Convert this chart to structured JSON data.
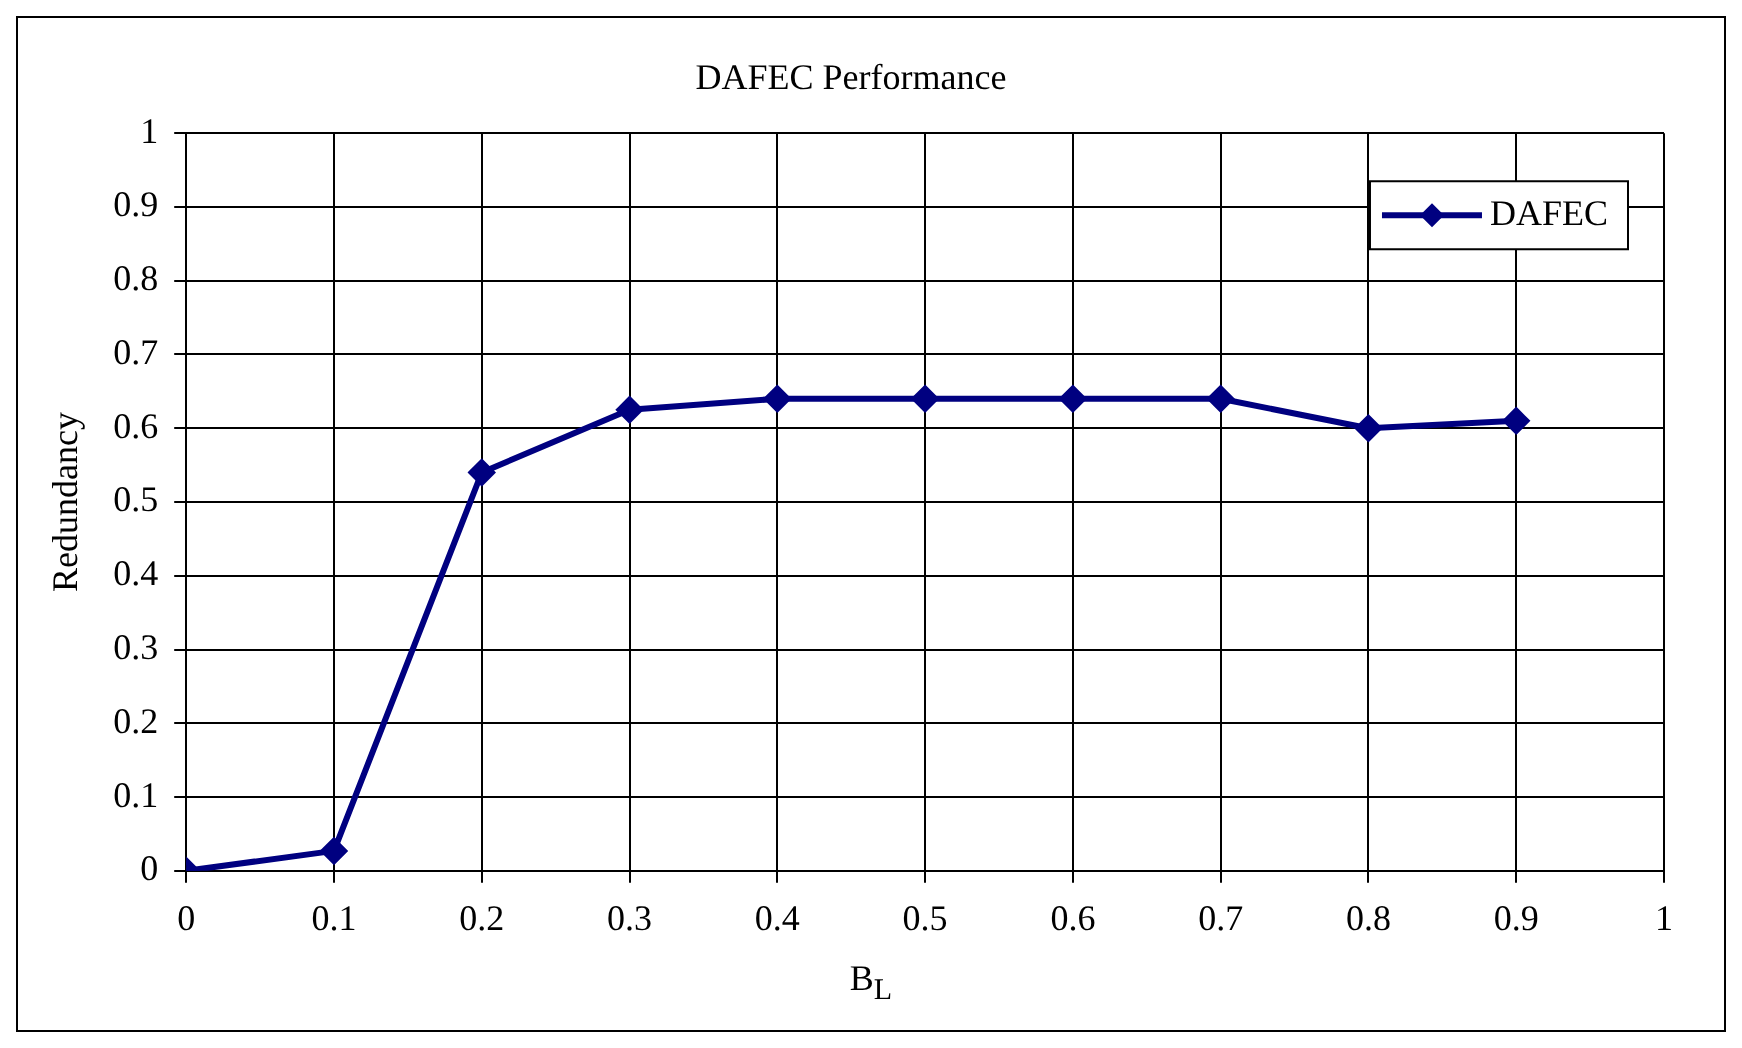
{
  "chart_data": {
    "type": "line",
    "title": "DAFEC Performance",
    "xlabel": "B$_{L}$",
    "ylabel": "Redundancy",
    "x": [
      0,
      0.1,
      0.2,
      0.3,
      0.4,
      0.5,
      0.6,
      0.7,
      0.8,
      0.9
    ],
    "series": [
      {
        "name": "DAFEC",
        "color": "#000080",
        "values": [
          0,
          0.027,
          0.54,
          0.625,
          0.64,
          0.64,
          0.64,
          0.64,
          0.6,
          0.61
        ]
      }
    ],
    "xlim": [
      0,
      1
    ],
    "xticks": [
      0,
      0.1,
      0.2,
      0.3,
      0.4,
      0.5,
      0.6,
      0.7,
      0.8,
      0.9,
      1
    ],
    "ylim": [
      0,
      1
    ],
    "yticks": [
      0,
      0.1,
      0.2,
      0.3,
      0.4,
      0.5,
      0.6,
      0.7,
      0.8,
      0.9,
      1
    ],
    "grid": true,
    "legend": "top right",
    "marker": "diamond",
    "line_style": "solid"
  }
}
